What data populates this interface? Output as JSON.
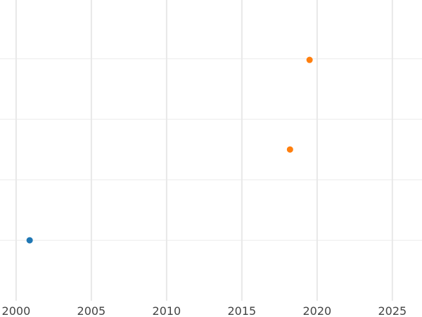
{
  "chart_data": {
    "type": "scatter",
    "title": "",
    "xlabel": "",
    "ylabel": "",
    "xlim": [
      1998.93,
      2026.97
    ],
    "ylim": [
      0,
      4.97
    ],
    "x_ticks": [
      "2000",
      "2005",
      "2010",
      "2015",
      "2020",
      "2025"
    ],
    "y_gridlines": [
      1,
      2,
      3,
      4
    ],
    "grid": true,
    "series": [
      {
        "color": "#1f77b4",
        "points": [
          {
            "x": 2000.9,
            "y": 1.0
          }
        ]
      },
      {
        "color": "#ff7f0e",
        "points": [
          {
            "x": 2018.2,
            "y": 2.5
          },
          {
            "x": 2019.5,
            "y": 3.98
          }
        ]
      }
    ]
  }
}
